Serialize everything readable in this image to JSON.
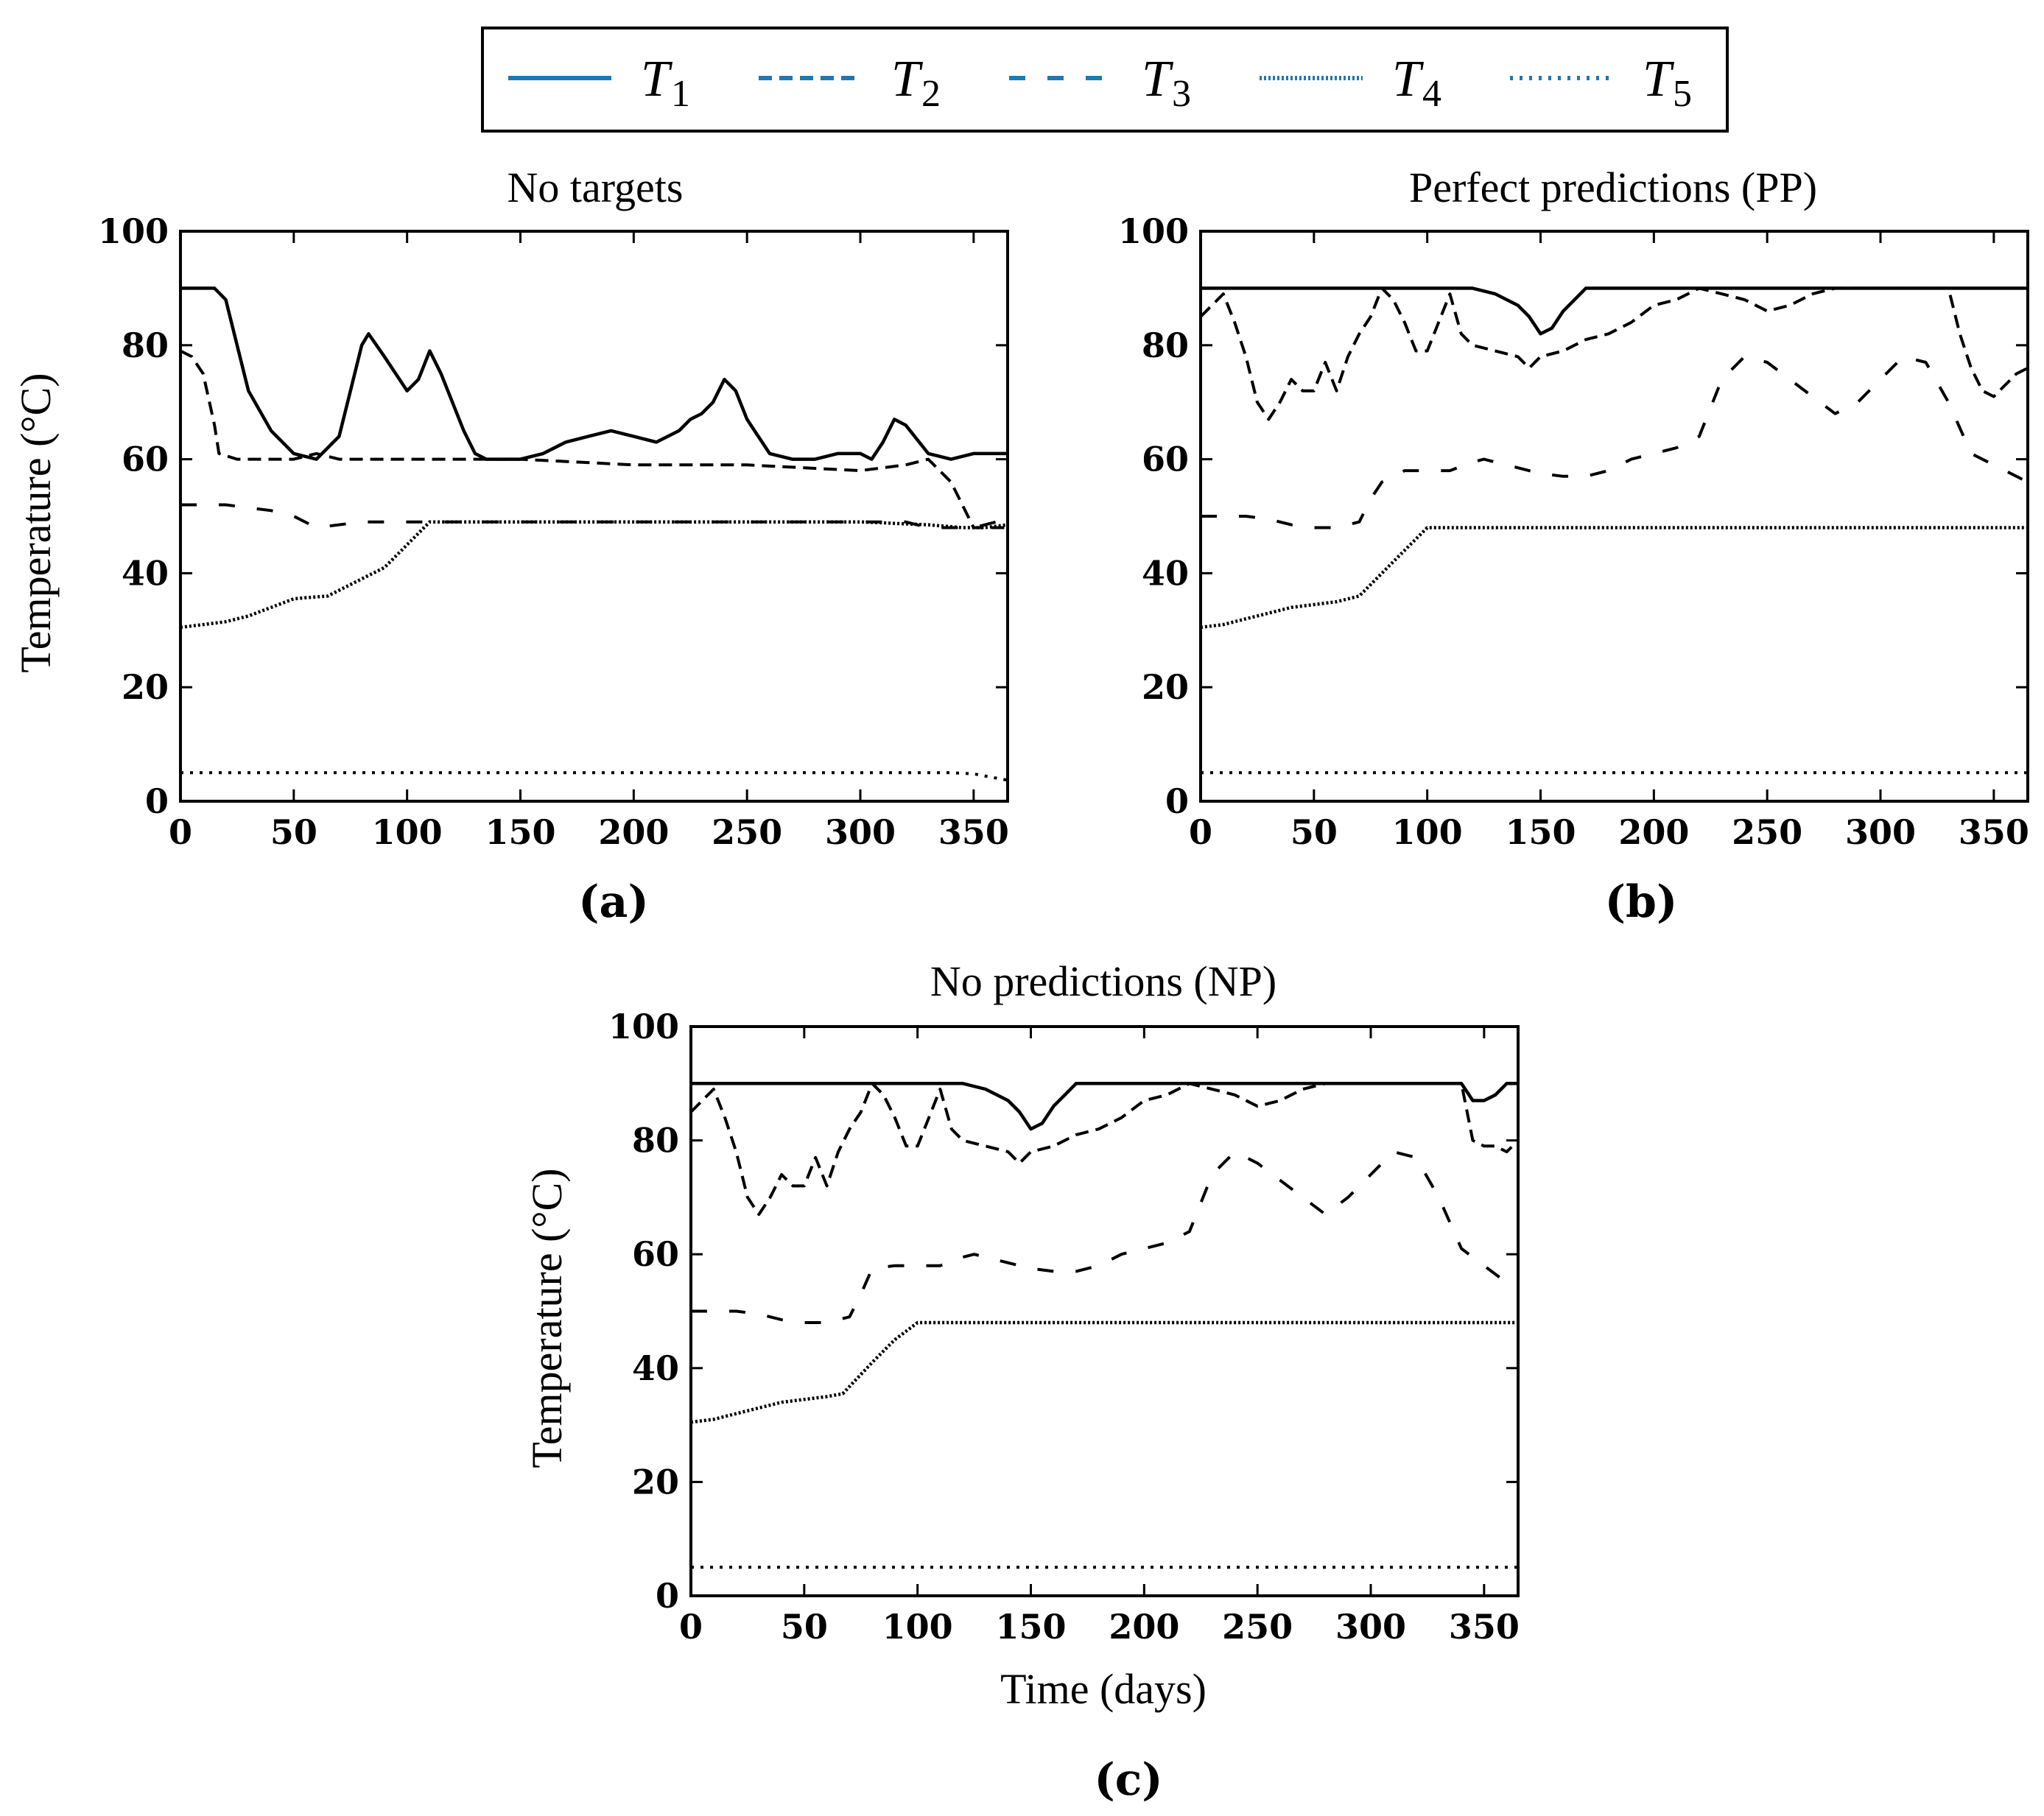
{
  "legend": {
    "entries": [
      {
        "name": "T",
        "sub": "1",
        "dash": "solid"
      },
      {
        "name": "T",
        "sub": "2",
        "dash": "dashed"
      },
      {
        "name": "T",
        "sub": "3",
        "dash": "longgap"
      },
      {
        "name": "T",
        "sub": "4",
        "dash": "densedot"
      },
      {
        "name": "T",
        "sub": "5",
        "dash": "dotted"
      }
    ],
    "color": "#1f77b4"
  },
  "series_color": "#000000",
  "chart_data": [
    {
      "type": "line",
      "panel_label": "(a)",
      "title": "No targets",
      "xlabel": "",
      "ylabel": "Temperature (°C)",
      "xlim": [
        0,
        365
      ],
      "ylim": [
        0,
        100
      ],
      "xticks": [
        0,
        50,
        100,
        150,
        200,
        250,
        300,
        350
      ],
      "yticks": [
        0,
        20,
        40,
        60,
        80,
        100
      ],
      "series": [
        {
          "name": "T1",
          "x": [
            0,
            15,
            20,
            25,
            30,
            40,
            50,
            60,
            65,
            70,
            75,
            80,
            83,
            90,
            95,
            100,
            105,
            110,
            115,
            120,
            125,
            130,
            135,
            140,
            150,
            160,
            170,
            180,
            190,
            200,
            210,
            220,
            225,
            230,
            235,
            240,
            245,
            250,
            260,
            270,
            280,
            290,
            300,
            305,
            310,
            315,
            320,
            330,
            340,
            350,
            360,
            365
          ],
          "y": [
            90,
            90,
            88,
            80,
            72,
            65,
            61,
            60,
            62,
            64,
            72,
            80,
            82,
            78,
            75,
            72,
            74,
            79,
            75,
            70,
            65,
            61,
            60,
            60,
            60,
            61,
            63,
            64,
            65,
            64,
            63,
            65,
            67,
            68,
            70,
            74,
            72,
            67,
            61,
            60,
            60,
            61,
            61,
            60,
            63,
            67,
            66,
            61,
            60,
            61,
            61,
            61
          ]
        },
        {
          "name": "T2",
          "x": [
            0,
            5,
            10,
            15,
            17,
            25,
            35,
            50,
            60,
            70,
            80,
            100,
            150,
            200,
            250,
            300,
            320,
            330,
            340,
            345,
            350,
            365
          ],
          "y": [
            79,
            78,
            75,
            66,
            61,
            60,
            60,
            60,
            61,
            60,
            60,
            60,
            60,
            59,
            59,
            58,
            59,
            60,
            56,
            52,
            48,
            48
          ]
        },
        {
          "name": "T3",
          "x": [
            0,
            20,
            40,
            50,
            60,
            80,
            100,
            200,
            300,
            320,
            330,
            350,
            360,
            365
          ],
          "y": [
            52,
            52,
            51,
            50,
            48,
            49,
            49,
            49,
            49,
            49,
            48,
            48,
            49,
            49
          ]
        },
        {
          "name": "T4",
          "x": [
            0,
            10,
            20,
            30,
            40,
            50,
            55,
            65,
            70,
            80,
            90,
            100,
            110,
            150,
            200,
            250,
            300,
            330,
            345,
            355,
            365
          ],
          "y": [
            30.5,
            31,
            31.5,
            32.5,
            34,
            35.5,
            35.7,
            36,
            37,
            39,
            41,
            45,
            49,
            49,
            49,
            49,
            49,
            48.5,
            48,
            48,
            48.5
          ]
        },
        {
          "name": "T5",
          "x": [
            0,
            100,
            200,
            300,
            340,
            350,
            358,
            365
          ],
          "y": [
            5,
            5,
            5,
            5,
            5,
            4.8,
            4.2,
            3.7
          ]
        }
      ]
    },
    {
      "type": "line",
      "panel_label": "(b)",
      "title": "Perfect predictions (PP)",
      "xlabel": "",
      "ylabel": "",
      "xlim": [
        0,
        365
      ],
      "ylim": [
        0,
        100
      ],
      "xticks": [
        0,
        50,
        100,
        150,
        200,
        250,
        300,
        350
      ],
      "yticks": [
        0,
        20,
        40,
        60,
        80,
        100
      ],
      "series": [
        {
          "name": "T1",
          "x": [
            0,
            120,
            130,
            140,
            145,
            150,
            155,
            160,
            165,
            170,
            175,
            200,
            250,
            300,
            330,
            340,
            350,
            365
          ],
          "y": [
            90,
            90,
            89,
            87,
            85,
            82,
            83,
            86,
            88,
            90,
            90,
            90,
            90,
            90,
            90,
            90,
            90,
            90
          ]
        },
        {
          "name": "T2",
          "x": [
            0,
            5,
            10,
            15,
            20,
            25,
            30,
            35,
            40,
            45,
            50,
            55,
            60,
            65,
            70,
            75,
            80,
            85,
            90,
            95,
            100,
            105,
            110,
            115,
            120,
            130,
            140,
            145,
            150,
            160,
            170,
            180,
            190,
            200,
            210,
            220,
            230,
            240,
            250,
            260,
            270,
            280,
            290,
            300,
            310,
            320,
            330,
            335,
            340,
            345,
            350,
            355,
            360,
            365
          ],
          "y": [
            85,
            87,
            89,
            84,
            78,
            70,
            67,
            70,
            74,
            72,
            72,
            77,
            72,
            78,
            82,
            85,
            90,
            88,
            84,
            79,
            79,
            84,
            89,
            82,
            80,
            79,
            78,
            76,
            78,
            79,
            81,
            82,
            84,
            87,
            88,
            90,
            89,
            88,
            86,
            87,
            89,
            90,
            90,
            90,
            90,
            90,
            90,
            82,
            76,
            72,
            71,
            73,
            75,
            76
          ]
        },
        {
          "name": "T3",
          "x": [
            0,
            10,
            20,
            30,
            40,
            50,
            60,
            70,
            75,
            80,
            90,
            100,
            110,
            120,
            125,
            130,
            140,
            150,
            160,
            170,
            180,
            190,
            200,
            210,
            220,
            230,
            240,
            250,
            260,
            270,
            280,
            290,
            300,
            310,
            320,
            330,
            340,
            350,
            365
          ],
          "y": [
            50,
            50,
            50,
            49.5,
            48.5,
            48,
            48,
            49,
            53,
            56,
            58,
            58,
            58,
            59.5,
            60,
            59.5,
            58.5,
            57.5,
            57,
            57,
            58,
            60,
            61,
            62,
            64,
            74,
            78,
            77,
            74,
            71,
            68,
            70,
            74,
            78,
            77,
            70,
            61,
            59,
            56
          ]
        },
        {
          "name": "T4",
          "x": [
            0,
            10,
            20,
            30,
            40,
            50,
            60,
            70,
            80,
            90,
            100,
            105,
            150,
            200,
            250,
            300,
            350,
            365
          ],
          "y": [
            30.5,
            31,
            32,
            33,
            34,
            34.5,
            35,
            36,
            40,
            44,
            48,
            48,
            48,
            48,
            48,
            48,
            48,
            48
          ]
        },
        {
          "name": "T5",
          "x": [
            0,
            100,
            200,
            300,
            365
          ],
          "y": [
            5,
            5,
            5,
            5,
            5
          ]
        }
      ]
    },
    {
      "type": "line",
      "panel_label": "(c)",
      "title": "No predictions (NP)",
      "xlabel": "Time (days)",
      "ylabel": "Temperature (°C)",
      "xlim": [
        0,
        365
      ],
      "ylim": [
        0,
        100
      ],
      "xticks": [
        0,
        50,
        100,
        150,
        200,
        250,
        300,
        350
      ],
      "yticks": [
        0,
        20,
        40,
        60,
        80,
        100
      ],
      "series": [
        {
          "name": "T1",
          "x": [
            0,
            120,
            130,
            140,
            145,
            150,
            155,
            160,
            165,
            170,
            175,
            200,
            250,
            300,
            340,
            345,
            350,
            355,
            360,
            365
          ],
          "y": [
            90,
            90,
            89,
            87,
            85,
            82,
            83,
            86,
            88,
            90,
            90,
            90,
            90,
            90,
            90,
            87,
            87,
            88,
            90,
            90
          ]
        },
        {
          "name": "T2",
          "x": [
            0,
            5,
            10,
            15,
            20,
            25,
            30,
            35,
            40,
            45,
            50,
            55,
            60,
            65,
            70,
            75,
            80,
            85,
            90,
            95,
            100,
            105,
            110,
            115,
            120,
            130,
            140,
            145,
            150,
            160,
            170,
            180,
            190,
            200,
            210,
            220,
            230,
            240,
            250,
            260,
            270,
            280,
            290,
            300,
            310,
            320,
            330,
            340,
            345,
            350,
            355,
            360,
            365
          ],
          "y": [
            85,
            87,
            89,
            84,
            78,
            70,
            67,
            70,
            74,
            72,
            72,
            77,
            72,
            78,
            82,
            85,
            90,
            88,
            84,
            79,
            79,
            84,
            89,
            82,
            80,
            79,
            78,
            76,
            78,
            79,
            81,
            82,
            84,
            87,
            88,
            90,
            89,
            88,
            86,
            87,
            89,
            90,
            90,
            90,
            90,
            90,
            90,
            90,
            80,
            79,
            79,
            78,
            80
          ]
        },
        {
          "name": "T3",
          "x": [
            0,
            10,
            20,
            30,
            40,
            50,
            60,
            70,
            75,
            80,
            90,
            100,
            110,
            120,
            125,
            130,
            140,
            150,
            160,
            170,
            180,
            190,
            200,
            210,
            220,
            230,
            240,
            250,
            260,
            270,
            280,
            290,
            300,
            310,
            320,
            330,
            340,
            350,
            360,
            365
          ],
          "y": [
            50,
            50,
            50,
            49.5,
            48.5,
            48,
            48,
            49,
            53,
            57.5,
            58,
            58,
            58,
            59.5,
            60,
            59.5,
            58.5,
            57.5,
            57,
            57,
            58,
            60,
            61,
            62,
            64,
            74,
            78,
            76,
            73,
            70,
            67,
            70,
            74,
            78,
            77,
            70,
            61,
            58,
            55,
            55
          ]
        },
        {
          "name": "T4",
          "x": [
            0,
            10,
            20,
            30,
            40,
            50,
            60,
            67,
            80,
            90,
            100,
            105,
            150,
            200,
            250,
            300,
            350,
            365
          ],
          "y": [
            30.5,
            31,
            32,
            33,
            34,
            34.5,
            35,
            35.5,
            41,
            45,
            48,
            48,
            48,
            48,
            48,
            48,
            48,
            48
          ]
        },
        {
          "name": "T5",
          "x": [
            0,
            100,
            200,
            300,
            365
          ],
          "y": [
            5,
            5,
            5,
            5,
            5
          ]
        }
      ]
    }
  ]
}
